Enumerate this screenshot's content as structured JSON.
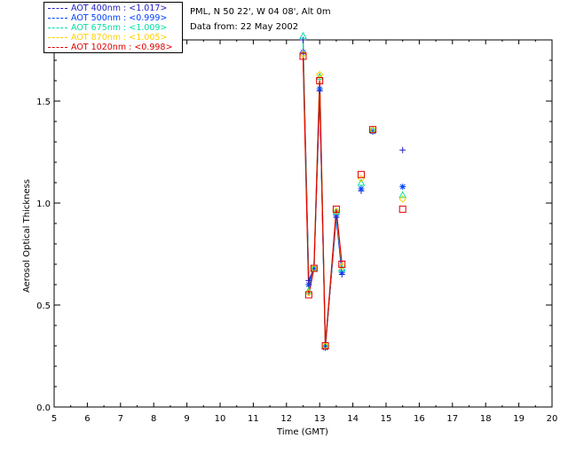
{
  "info": {
    "location": "PML, N 50 22', W 04 08', Alt 0m",
    "date_line": "Data from: 22 May 2002"
  },
  "chart_data": {
    "type": "line",
    "xlabel": "Time (GMT)",
    "ylabel": "Aerosol Optical Thickness",
    "xlim": [
      5,
      20
    ],
    "ylim": [
      0.0,
      1.8
    ],
    "xticks": [
      5,
      6,
      7,
      8,
      9,
      10,
      11,
      12,
      13,
      14,
      15,
      16,
      17,
      18,
      19,
      20
    ],
    "yticks": [
      0.0,
      0.5,
      1.0,
      1.5
    ],
    "ytick_labels": [
      "0.0",
      "0.5",
      "1.0",
      "1.5"
    ],
    "grid": false,
    "legend_position": "top-left",
    "series": [
      {
        "name": "AOT  400nm : <1.017>",
        "color": "#2020c0",
        "marker": "plus",
        "x": [
          12.5,
          12.67,
          12.83,
          13.0,
          13.17,
          13.5,
          13.67,
          14.25,
          14.6,
          15.5
        ],
        "y": [
          1.8,
          0.62,
          0.68,
          1.55,
          0.3,
          0.93,
          0.65,
          1.06,
          1.35,
          1.26
        ]
      },
      {
        "name": "AOT  500nm : <0.999>",
        "color": "#0040ff",
        "marker": "asterisk",
        "x": [
          12.5,
          12.67,
          12.83,
          13.0,
          13.17,
          13.5,
          13.67,
          14.25,
          14.6,
          15.5
        ],
        "y": [
          1.74,
          0.6,
          0.68,
          1.56,
          0.29,
          0.94,
          0.66,
          1.07,
          1.35,
          1.08
        ]
      },
      {
        "name": "AOT  675nm : <1.009>",
        "color": "#00e0a0",
        "marker": "triangle",
        "x": [
          12.5,
          12.67,
          12.83,
          13.0,
          13.17,
          13.5,
          13.67,
          14.25,
          14.6,
          15.5
        ],
        "y": [
          1.84,
          0.57,
          0.68,
          1.62,
          0.3,
          0.96,
          0.68,
          1.1,
          1.36,
          1.04
        ]
      },
      {
        "name": "AOT  870nm : <1.005>",
        "color": "#ffd000",
        "marker": "diamond",
        "x": [
          12.5,
          12.67,
          12.83,
          13.0,
          13.17,
          13.5,
          13.67,
          14.25,
          14.6,
          15.5
        ],
        "y": [
          1.73,
          0.56,
          0.68,
          1.63,
          0.3,
          0.96,
          0.69,
          1.12,
          1.36,
          1.02
        ]
      },
      {
        "name": "AOT 1020nm : <0.998>",
        "color": "#e00000",
        "marker": "square",
        "x": [
          12.5,
          12.67,
          12.83,
          13.0,
          13.17,
          13.5,
          13.67,
          14.25,
          14.6,
          15.5
        ],
        "y": [
          1.72,
          0.55,
          0.68,
          1.6,
          0.3,
          0.97,
          0.7,
          1.14,
          1.36,
          0.97
        ]
      }
    ]
  }
}
